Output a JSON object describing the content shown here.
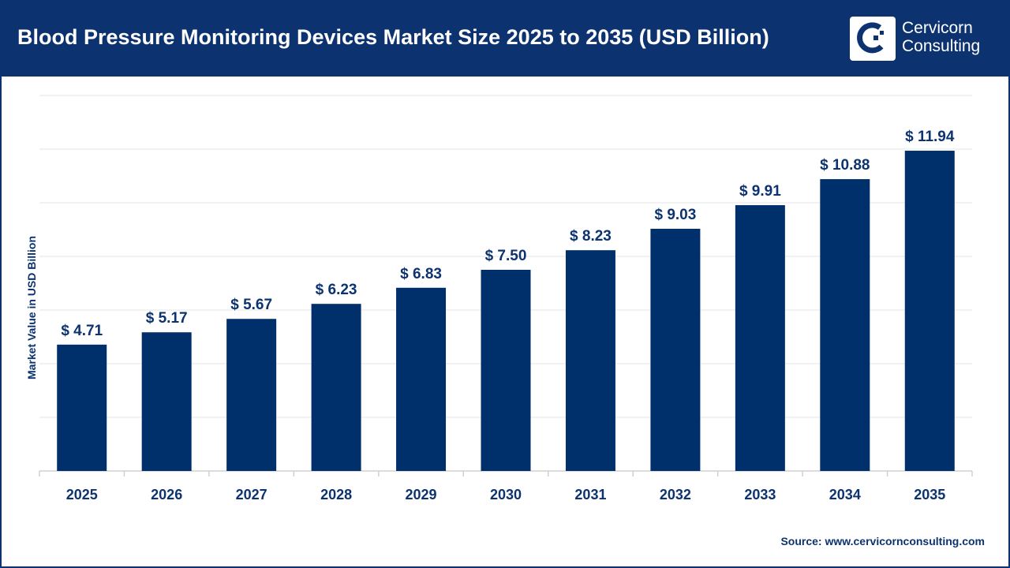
{
  "header": {
    "title": "Blood Pressure Monitoring Devices Market Size 2025 to 2035 (USD Billion)",
    "logo_text": [
      "Cervicorn",
      "Consulting"
    ]
  },
  "source": "Source: www.cervicornconsulting.com",
  "colors": {
    "header": "#0c3370",
    "bar": "#00306b",
    "grid": "#e6e6e6"
  },
  "chart_data": {
    "type": "bar",
    "title": "Blood Pressure Monitoring Devices Market Size 2025 to 2035 (USD Billion)",
    "xlabel": "",
    "ylabel": "Market Value in USD Billion",
    "categories": [
      "2025",
      "2026",
      "2027",
      "2028",
      "2029",
      "2030",
      "2031",
      "2032",
      "2033",
      "2034",
      "2035"
    ],
    "values": [
      4.71,
      5.17,
      5.67,
      6.23,
      6.83,
      7.5,
      8.23,
      9.03,
      9.91,
      10.88,
      11.94
    ],
    "labels": [
      "$ 4.71",
      "$ 5.17",
      "$ 5.67",
      "$ 6.23",
      "$ 6.83",
      "$ 7.50",
      "$ 8.23",
      "$ 9.03",
      "$ 9.91",
      "$ 10.88",
      "$ 11.94"
    ],
    "ylim": [
      0,
      14
    ],
    "grid": true
  }
}
